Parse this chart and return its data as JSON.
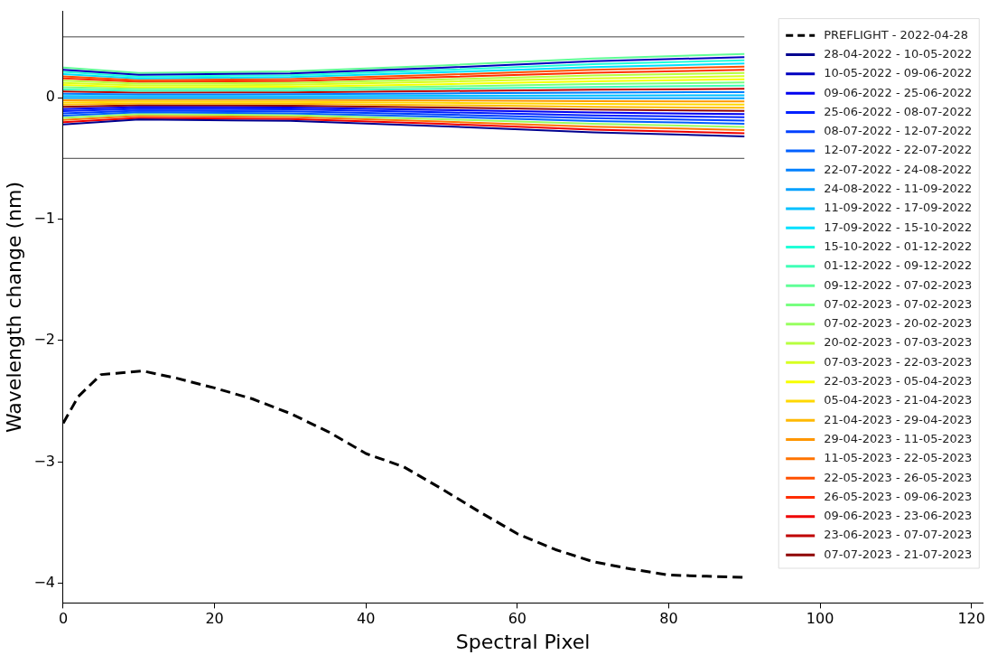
{
  "chart_data": {
    "type": "line",
    "xlabel": "Spectral Pixel",
    "ylabel": "Wavelength change (nm)",
    "x": [
      0,
      10,
      30,
      50,
      70,
      90
    ],
    "xlim": [
      0,
      121.5
    ],
    "xticks": [
      0,
      20,
      40,
      60,
      80,
      100,
      120
    ],
    "ylim": [
      -4.16,
      0.71
    ],
    "yticks": [
      -4,
      -3,
      -2,
      -1,
      0
    ],
    "grid": false,
    "legend": "top right",
    "marker": "none",
    "series": [
      {
        "name": "PREFLIGHT - 2022-04-28",
        "color": "#000000",
        "line_style": "dashed",
        "x": [
          0,
          2,
          5,
          7,
          10.5,
          15,
          20,
          25,
          30,
          35,
          40,
          45,
          50,
          55,
          60,
          65,
          70,
          75,
          80,
          85,
          90
        ],
        "values": [
          -2.68,
          -2.46,
          -2.28,
          -2.27,
          -2.25,
          -2.31,
          -2.39,
          -2.48,
          -2.6,
          -2.75,
          -2.93,
          -3.04,
          -3.22,
          -3.41,
          -3.59,
          -3.72,
          -3.82,
          -3.88,
          -3.93,
          -3.94,
          -3.95
        ]
      },
      {
        "name": "28-04-2022 - 10-05-2022",
        "color": "#00008f",
        "values": [
          -0.22,
          -0.18,
          -0.191,
          -0.235,
          -0.286,
          -0.319
        ]
      },
      {
        "name": "10-05-2022 - 09-06-2022",
        "color": "#0000bf",
        "values": [
          0.23,
          0.189,
          0.2,
          0.246,
          0.299,
          0.334
        ]
      },
      {
        "name": "09-06-2022 - 25-06-2022",
        "color": "#0000ef",
        "values": [
          -0.094,
          -0.077,
          -0.082,
          -0.101,
          -0.122,
          -0.136
        ]
      },
      {
        "name": "25-06-2022 - 08-07-2022",
        "color": "#0020ff",
        "values": [
          -0.112,
          -0.092,
          -0.097,
          -0.12,
          -0.146,
          -0.162
        ]
      },
      {
        "name": "08-07-2022 - 12-07-2022",
        "color": "#0040ff",
        "values": [
          -0.13,
          -0.107,
          -0.113,
          -0.139,
          -0.169,
          -0.189
        ]
      },
      {
        "name": "12-07-2022 - 22-07-2022",
        "color": "#0060ff",
        "values": [
          -0.148,
          -0.121,
          -0.129,
          -0.158,
          -0.192,
          -0.215
        ]
      },
      {
        "name": "22-07-2022 - 24-08-2022",
        "color": "#0080ff",
        "values": [
          0.032,
          0.026,
          0.028,
          0.034,
          0.042,
          0.046
        ]
      },
      {
        "name": "24-08-2022 - 11-09-2022",
        "color": "#00a0ff",
        "values": [
          -0.004,
          -0.003,
          -0.003,
          -0.004,
          -0.005,
          -0.006
        ]
      },
      {
        "name": "11-09-2022 - 17-09-2022",
        "color": "#00c0ff",
        "values": [
          0.014,
          0.011,
          0.012,
          0.015,
          0.018,
          0.02
        ]
      },
      {
        "name": "17-09-2022 - 15-10-2022",
        "color": "#00e0ff",
        "values": [
          0.194,
          0.159,
          0.169,
          0.208,
          0.252,
          0.281
        ]
      },
      {
        "name": "15-10-2022 - 01-12-2022",
        "color": "#20ffd7",
        "values": [
          0.212,
          0.174,
          0.184,
          0.227,
          0.276,
          0.307
        ]
      },
      {
        "name": "01-12-2022 - 09-12-2022",
        "color": "#40ffb7",
        "values": [
          0.068,
          0.056,
          0.059,
          0.073,
          0.088,
          0.099
        ]
      },
      {
        "name": "09-12-2022 - 07-02-2023",
        "color": "#60ff97",
        "values": [
          0.248,
          0.203,
          0.216,
          0.265,
          0.322,
          0.36
        ]
      },
      {
        "name": "07-02-2023 - 07-02-2023",
        "color": "#77ff80",
        "values": [
          0.086,
          0.071,
          0.075,
          0.092,
          0.112,
          0.125
        ]
      },
      {
        "name": "07-02-2023 - 20-02-2023",
        "color": "#97ff60",
        "values": [
          -0.166,
          -0.136,
          -0.144,
          -0.178,
          -0.216,
          -0.241
        ]
      },
      {
        "name": "20-02-2023 - 07-03-2023",
        "color": "#b7ff40",
        "values": [
          0.14,
          0.115,
          0.122,
          0.15,
          0.182,
          0.203
        ]
      },
      {
        "name": "07-03-2023 - 22-03-2023",
        "color": "#d7ff20",
        "values": [
          0.122,
          0.1,
          0.106,
          0.131,
          0.159,
          0.177
        ]
      },
      {
        "name": "22-03-2023 - 05-04-2023",
        "color": "#f7ff00",
        "values": [
          0.104,
          0.085,
          0.09,
          0.111,
          0.135,
          0.151
        ]
      },
      {
        "name": "05-04-2023 - 21-04-2023",
        "color": "#ffd800",
        "values": [
          -0.04,
          -0.033,
          -0.035,
          -0.043,
          -0.052,
          -0.058
        ]
      },
      {
        "name": "21-04-2023 - 29-04-2023",
        "color": "#ffb900",
        "values": [
          -0.058,
          -0.048,
          -0.05,
          -0.062,
          -0.075,
          -0.084
        ]
      },
      {
        "name": "29-04-2023 - 11-05-2023",
        "color": "#ff9600",
        "values": [
          -0.022,
          -0.018,
          -0.019,
          -0.024,
          -0.029,
          -0.032
        ]
      },
      {
        "name": "11-05-2023 - 22-05-2023",
        "color": "#ff7300",
        "values": [
          -0.184,
          -0.151,
          -0.16,
          -0.197,
          -0.239,
          -0.267
        ]
      },
      {
        "name": "22-05-2023 - 26-05-2023",
        "color": "#ff5000",
        "values": [
          0.176,
          0.144,
          0.153,
          0.188,
          0.229,
          0.255
        ]
      },
      {
        "name": "26-05-2023 - 09-06-2023",
        "color": "#ff2d00",
        "values": [
          0.158,
          0.13,
          0.137,
          0.169,
          0.205,
          0.229
        ]
      },
      {
        "name": "09-06-2023 - 23-06-2023",
        "color": "#ef0000",
        "values": [
          -0.202,
          -0.166,
          -0.176,
          -0.216,
          -0.263,
          -0.293
        ]
      },
      {
        "name": "23-06-2023 - 07-07-2023",
        "color": "#c00000",
        "values": [
          0.05,
          0.041,
          0.044,
          0.054,
          0.065,
          0.073
        ]
      },
      {
        "name": "07-07-2023 - 21-07-2023",
        "color": "#8f0000",
        "values": [
          -0.076,
          -0.062,
          -0.066,
          -0.081,
          -0.099,
          -0.11
        ]
      },
      {
        "color": "#444444",
        "x": [
          0,
          90
        ],
        "values": [
          0.5,
          0.5
        ]
      },
      {
        "color": "#444444",
        "x": [
          0,
          90
        ],
        "values": [
          -0.5,
          -0.5
        ]
      }
    ]
  }
}
